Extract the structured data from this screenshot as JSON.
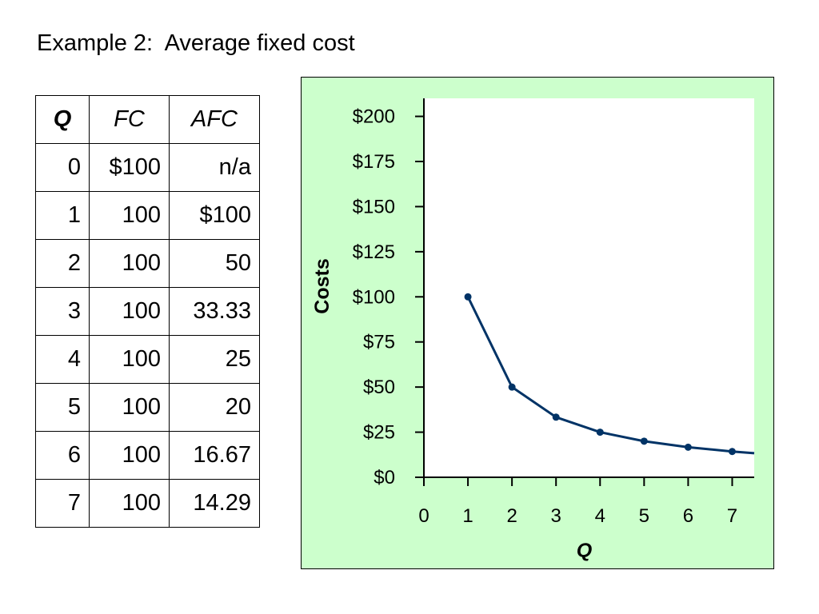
{
  "title": "Example 2:  Average fixed cost",
  "table": {
    "headers": [
      "Q",
      "FC",
      "AFC"
    ],
    "rows": [
      [
        "0",
        "$100",
        "n/a"
      ],
      [
        "1",
        "100",
        "$100"
      ],
      [
        "2",
        "100",
        "50"
      ],
      [
        "3",
        "100",
        "33.33"
      ],
      [
        "4",
        "100",
        "25"
      ],
      [
        "5",
        "100",
        "20"
      ],
      [
        "6",
        "100",
        "16.67"
      ],
      [
        "7",
        "100",
        "14.29"
      ]
    ]
  },
  "chart_data": {
    "type": "line",
    "xlabel": "Q",
    "ylabel": "Costs",
    "xlim": [
      0,
      7.5
    ],
    "ylim": [
      0,
      210
    ],
    "x_ticks": [
      0,
      1,
      2,
      3,
      4,
      5,
      6,
      7
    ],
    "x_tick_labels": [
      "0",
      "1",
      "2",
      "3",
      "4",
      "5",
      "6",
      "7"
    ],
    "y_ticks": [
      0,
      25,
      50,
      75,
      100,
      125,
      150,
      175,
      200
    ],
    "y_tick_labels": [
      "$0",
      "$25",
      "$50",
      "$75",
      "$100",
      "$125",
      "$150",
      "$175",
      "$200"
    ],
    "grid": false,
    "series": [
      {
        "points_x": [
          1,
          2,
          3,
          4,
          5,
          6,
          7
        ],
        "points_y": [
          100,
          50,
          33.33,
          25,
          20,
          16.67,
          14.29
        ],
        "curve_x": [
          1,
          2,
          3,
          4,
          5,
          6,
          7,
          7.5
        ],
        "curve_y": [
          100,
          50,
          33.33,
          25,
          20,
          16.67,
          14.29,
          13.33
        ],
        "color": "#003366"
      }
    ],
    "plot_background": "#ffffff",
    "panel_background": "#ccffcc"
  }
}
